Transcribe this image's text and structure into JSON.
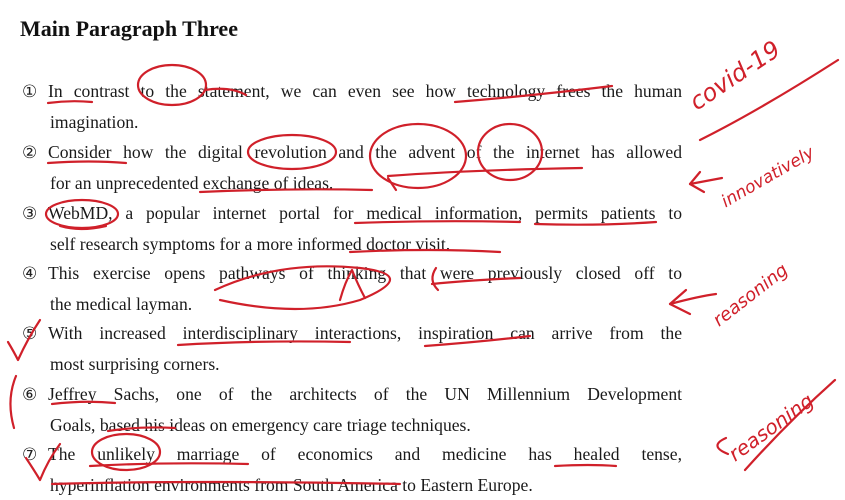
{
  "title": "Main Paragraph Three",
  "paragraphs": [
    {
      "num": "①",
      "line1": "In contrast to the statement, we can even see how technology frees the human",
      "line2": "imagination."
    },
    {
      "num": "②",
      "line1": "Consider how the digital revolution and the advent of the internet has allowed",
      "line2": "for an unprecedented exchange of ideas."
    },
    {
      "num": "③",
      "line1": "WebMD, a popular internet portal for medical information, permits patients to",
      "line2": "self research symptoms for a more informed doctor visit."
    },
    {
      "num": "④",
      "line1": "This exercise opens pathways of thinking that were previously closed off to",
      "line2": "the medical layman."
    },
    {
      "num": "⑤",
      "line1": "With increased interdisciplinary interactions, inspiration can arrive from the",
      "line2": "most surprising corners."
    },
    {
      "num": "⑥",
      "line1": "Jeffrey Sachs, one of the architects of the UN Millennium Development",
      "line2": "Goals, based his ideas on emergency care triage techniques."
    },
    {
      "num": "⑦",
      "line1": "The unlikely marriage of economics and medicine has healed tense,",
      "line2": "hyperinflation environments from South America to Eastern Europe."
    }
  ],
  "annotations": {
    "covid": "covid-19",
    "innovatively": "innovatively",
    "reasoning1": "reasoning",
    "reasoning2": "reasoning"
  },
  "colors": {
    "ink": "#d0202a",
    "text": "#1a1a1a"
  }
}
